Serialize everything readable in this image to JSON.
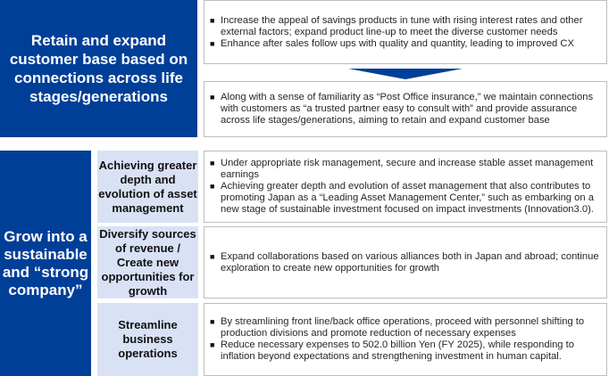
{
  "colors": {
    "navy": "#003f98",
    "light_blue": "#d9e1f5",
    "border": "#bdbdbd"
  },
  "section1": {
    "title": "Retain and expand customer base based on connections across life stages/generations",
    "top_box": {
      "bullets": [
        "Increase the appeal of savings products in tune with rising interest rates and other external factors; expand product line-up to meet the diverse customer needs",
        "Enhance after sales follow ups with quality and quantity, leading to improved CX"
      ]
    },
    "arrow_icon": "down-arrow-icon",
    "bottom_box": {
      "bullets": [
        "Along with a sense of familiarity as “Post Office insurance,” we maintain connections with customers as “a trusted partner easy to consult with” and provide assurance across life stages/generations, aiming to retain and expand customer base"
      ]
    }
  },
  "section2": {
    "title": "Grow into a sustainable and “strong company”",
    "rows": [
      {
        "label": "Achieving greater depth and evolution of asset management",
        "bullets": [
          "Under appropriate risk management, secure and increase stable asset management earnings",
          "Achieving greater depth and evolution of asset management that also contributes to promoting Japan as a “Leading Asset Management Center,” such as embarking on a new stage of sustainable investment focused on impact investments (Innovation3.0)."
        ]
      },
      {
        "label": "Diversify sources of revenue / Create new opportunities for growth",
        "bullets": [
          "Expand collaborations based on various alliances both in Japan and abroad; continue exploration to create new opportunities for growth"
        ]
      },
      {
        "label": "Streamline business operations",
        "bullets": [
          "By streamlining front line/back office operations, proceed with personnel shifting to production divisions and promote reduction of necessary expenses",
          "Reduce necessary expenses to 502.0 billion Yen (FY 2025), while responding to inflation beyond expectations and strengthening investment in human capital."
        ]
      }
    ]
  },
  "bullet_glyph": "■"
}
